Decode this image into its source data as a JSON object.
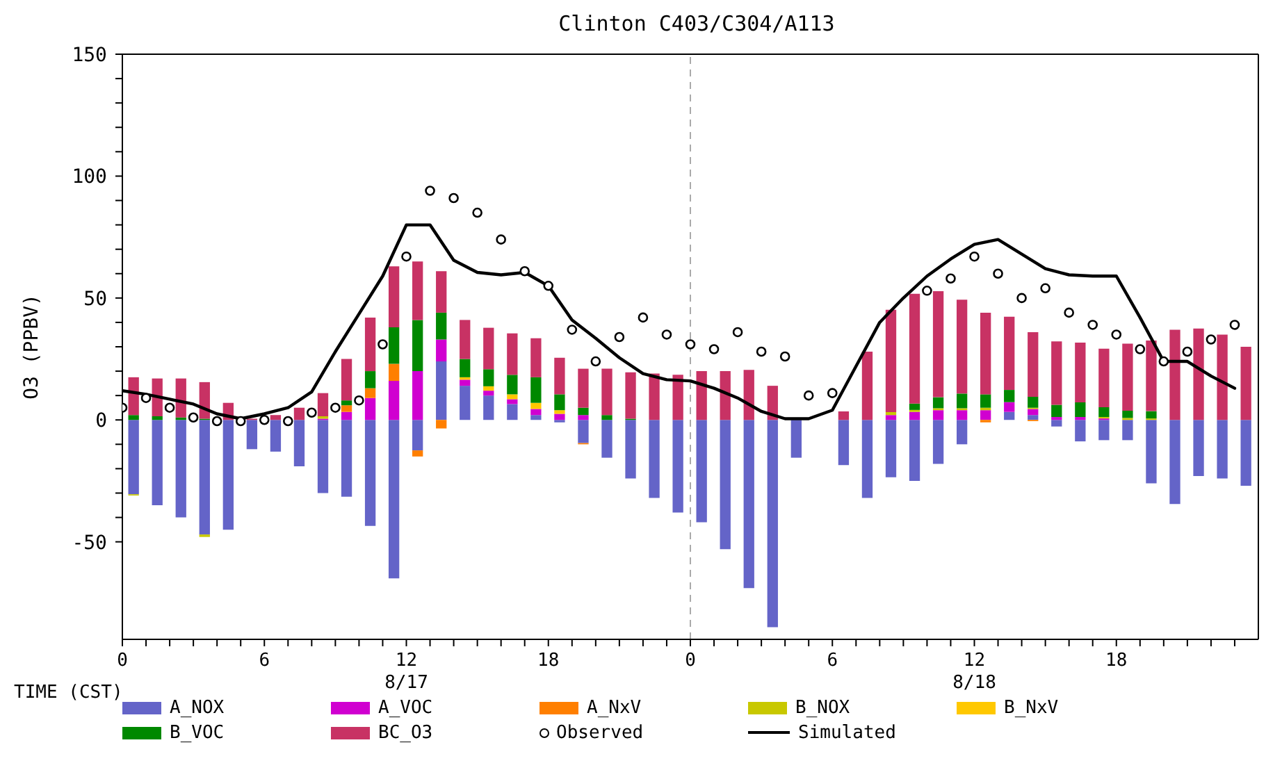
{
  "chart_data": {
    "type": "bar",
    "title": "Clinton C403/C304/A113",
    "xlabel": "TIME (CST)",
    "ylabel": "O3 (PPBV)",
    "stacked": true,
    "legend": "bottom",
    "x": [
      "--08-17T00:30",
      "--08-17T01:30",
      "--08-17T02:30",
      "--08-17T03:30",
      "--08-17T04:30",
      "--08-17T05:30",
      "--08-17T06:30",
      "--08-17T07:30",
      "--08-17T08:30",
      "--08-17T09:30",
      "--08-17T10:30",
      "--08-17T11:30",
      "--08-17T12:30",
      "--08-17T13:30",
      "--08-17T14:30",
      "--08-17T15:30",
      "--08-17T16:30",
      "--08-17T17:30",
      "--08-17T18:30",
      "--08-17T19:30",
      "--08-17T20:30",
      "--08-17T21:30",
      "--08-17T22:30",
      "--08-17T23:30",
      "--08-18T00:30",
      "--08-18T01:30",
      "--08-18T02:30",
      "--08-18T03:30",
      "--08-18T04:30",
      "--08-18T05:30",
      "--08-18T06:30",
      "--08-18T07:30",
      "--08-18T08:30",
      "--08-18T09:30",
      "--08-18T10:30",
      "--08-18T11:30",
      "--08-18T12:30",
      "--08-18T13:30",
      "--08-18T14:30",
      "--08-18T15:30",
      "--08-18T16:30",
      "--08-18T17:30",
      "--08-18T18:30",
      "--08-18T19:30",
      "--08-18T20:30",
      "--08-18T21:30",
      "--08-18T22:30",
      "--08-18T23:30"
    ],
    "xlim": [
      "--08-17T00:00",
      "--08-19T00:00"
    ],
    "xticks": [
      {
        "value": "--08-17T00:00",
        "label": "0"
      },
      {
        "value": "--08-17T01:00",
        "label": null
      },
      {
        "value": "--08-17T02:00",
        "label": null
      },
      {
        "value": "--08-17T03:00",
        "label": null
      },
      {
        "value": "--08-17T04:00",
        "label": null
      },
      {
        "value": "--08-17T05:00",
        "label": null
      },
      {
        "value": "--08-17T06:00",
        "label": "6"
      },
      {
        "value": "--08-17T07:00",
        "label": null
      },
      {
        "value": "--08-17T08:00",
        "label": null
      },
      {
        "value": "--08-17T09:00",
        "label": null
      },
      {
        "value": "--08-17T10:00",
        "label": null
      },
      {
        "value": "--08-17T11:00",
        "label": null
      },
      {
        "value": "--08-17T12:00",
        "label": "12\n8/17"
      },
      {
        "value": "--08-17T13:00",
        "label": null
      },
      {
        "value": "--08-17T14:00",
        "label": null
      },
      {
        "value": "--08-17T15:00",
        "label": null
      },
      {
        "value": "--08-17T16:00",
        "label": null
      },
      {
        "value": "--08-17T17:00",
        "label": null
      },
      {
        "value": "--08-17T18:00",
        "label": "18"
      },
      {
        "value": "--08-17T19:00",
        "label": null
      },
      {
        "value": "--08-17T20:00",
        "label": null
      },
      {
        "value": "--08-17T21:00",
        "label": null
      },
      {
        "value": "--08-17T22:00",
        "label": null
      },
      {
        "value": "--08-17T23:00",
        "label": null
      },
      {
        "value": "--08-18T00:00",
        "label": "0"
      },
      {
        "value": "--08-18T01:00",
        "label": null
      },
      {
        "value": "--08-18T02:00",
        "label": null
      },
      {
        "value": "--08-18T03:00",
        "label": null
      },
      {
        "value": "--08-18T04:00",
        "label": null
      },
      {
        "value": "--08-18T05:00",
        "label": null
      },
      {
        "value": "--08-18T06:00",
        "label": "6"
      },
      {
        "value": "--08-18T07:00",
        "label": null
      },
      {
        "value": "--08-18T08:00",
        "label": null
      },
      {
        "value": "--08-18T09:00",
        "label": null
      },
      {
        "value": "--08-18T10:00",
        "label": null
      },
      {
        "value": "--08-18T11:00",
        "label": null
      },
      {
        "value": "--08-18T12:00",
        "label": "12\n8/18"
      },
      {
        "value": "--08-18T13:00",
        "label": null
      },
      {
        "value": "--08-18T14:00",
        "label": null
      },
      {
        "value": "--08-18T15:00",
        "label": null
      },
      {
        "value": "--08-18T16:00",
        "label": null
      },
      {
        "value": "--08-18T17:00",
        "label": null
      },
      {
        "value": "--08-18T18:00",
        "label": "18"
      },
      {
        "value": "--08-18T19:00",
        "label": null
      },
      {
        "value": "--08-18T20:00",
        "label": null
      },
      {
        "value": "--08-18T21:00",
        "label": null
      },
      {
        "value": "--08-18T22:00",
        "label": null
      },
      {
        "value": "--08-18T23:00",
        "label": null
      }
    ],
    "ylim": [
      -90,
      150
    ],
    "yticks": [
      -50,
      {
        "value": -40,
        "label": null
      },
      {
        "value": -30,
        "label": null
      },
      {
        "value": -20,
        "label": null
      },
      {
        "value": -10,
        "label": null
      },
      0,
      {
        "value": 10,
        "label": null
      },
      {
        "value": 20,
        "label": null
      },
      {
        "value": 30,
        "label": null
      },
      {
        "value": 40,
        "label": null
      },
      50,
      {
        "value": 60,
        "label": null
      },
      {
        "value": 70,
        "label": null
      },
      {
        "value": 80,
        "label": null
      },
      {
        "value": 90,
        "label": null
      },
      100,
      {
        "value": 110,
        "label": null
      },
      {
        "value": 120,
        "label": null
      },
      {
        "value": 130,
        "label": null
      },
      {
        "value": 140,
        "label": null
      },
      150
    ],
    "ref_lines": [
      {
        "axis": "x",
        "value": "--08-18T00:00",
        "color": "#aaaaaa",
        "line_style": "dashed"
      }
    ],
    "series": [
      {
        "name": "A_NOX",
        "color": "#6464c8",
        "values": [
          -30.5,
          -35,
          -40,
          -47,
          -45,
          -12,
          -13,
          -19,
          -30,
          -31.5,
          -43.5,
          -65,
          -12.5,
          24,
          14,
          10,
          6.5,
          2,
          -1,
          -9.5,
          -15.5,
          -24,
          -32,
          -38,
          -42,
          -53,
          -69,
          -85,
          -15.5,
          0,
          -18.5,
          -32,
          -23.5,
          -25,
          -18,
          -10,
          0,
          3.3,
          2,
          -2.7,
          -8.8,
          -8.3,
          -8.3,
          -26,
          -34.5,
          -23,
          -24,
          -27
        ]
      },
      {
        "name": "A_VOC",
        "color": "#d000d0",
        "values": [
          0,
          0,
          0,
          0,
          0,
          0,
          0,
          0,
          0.5,
          3.3,
          9,
          16,
          20,
          9,
          2.5,
          2,
          2,
          2.5,
          2.5,
          2,
          0,
          0,
          0,
          0,
          0,
          0,
          0,
          0,
          0,
          0,
          0,
          0,
          2,
          3.3,
          4,
          4,
          4,
          4,
          2.5,
          1.2,
          1.2,
          0.6,
          0,
          0,
          0,
          0,
          0,
          0
        ]
      },
      {
        "name": "A_NxV",
        "color": "#ff7f00",
        "values": [
          0,
          0,
          0,
          0,
          0,
          0,
          0,
          0,
          0,
          2.7,
          4,
          7,
          -2.5,
          -3.5,
          0,
          0,
          0,
          0,
          0,
          -0.5,
          0,
          0,
          0,
          0,
          0,
          0,
          0,
          0,
          0,
          0,
          0,
          0,
          0,
          0,
          0,
          0,
          -1,
          0,
          -0.5,
          0,
          0,
          0,
          0,
          0,
          0,
          0,
          0,
          0
        ]
      },
      {
        "name": "B_NOX",
        "color": "#c8c800",
        "values": [
          -0.5,
          0,
          0,
          -1,
          0,
          0,
          0,
          0,
          1,
          0,
          0,
          0,
          0,
          0,
          0,
          0,
          0,
          0,
          0,
          0,
          0,
          0,
          0,
          0,
          0,
          0,
          0,
          0,
          0,
          0,
          0,
          0,
          1.2,
          0.8,
          0.8,
          0.8,
          1,
          0,
          0.5,
          0,
          0,
          0.6,
          0.8,
          0.6,
          0,
          0,
          0,
          0
        ]
      },
      {
        "name": "B_NxV",
        "color": "#ffc800",
        "values": [
          0,
          0,
          0,
          0,
          0,
          0,
          0,
          0,
          0,
          0,
          0,
          0,
          0,
          0,
          1,
          1.8,
          2,
          2.5,
          1.5,
          0,
          0,
          0,
          0,
          0,
          0,
          0,
          0,
          0,
          0,
          0,
          0,
          0,
          0,
          0,
          0,
          0,
          0,
          0,
          0,
          0,
          0,
          0,
          0,
          0,
          0,
          0,
          0,
          0
        ]
      },
      {
        "name": "B_VOC",
        "color": "#008800",
        "values": [
          2,
          1.5,
          1,
          0.5,
          0,
          0,
          0,
          0,
          0,
          2,
          7,
          15,
          21,
          11,
          7.5,
          7,
          8,
          10.5,
          6.5,
          3,
          2,
          0.5,
          0,
          0,
          0,
          0,
          0,
          0,
          0,
          0,
          0,
          0,
          0,
          2.6,
          4.5,
          6,
          5.5,
          5,
          4.5,
          5,
          6,
          4,
          3,
          3,
          0,
          0,
          0,
          0
        ]
      },
      {
        "name": "BC_O3",
        "color": "#c83264",
        "values": [
          15.5,
          15.5,
          16,
          15,
          7,
          0.5,
          2,
          5,
          9.5,
          17,
          22,
          25,
          24,
          17,
          16,
          17,
          17,
          16,
          15,
          16,
          19,
          19,
          19,
          18.5,
          20,
          20,
          20.5,
          14,
          0,
          0,
          3.5,
          28,
          42,
          45,
          43.5,
          38.5,
          33.5,
          30,
          26.5,
          26,
          24.5,
          24,
          27.5,
          29,
          37,
          37.5,
          35,
          30
        ]
      },
      {
        "name": "Observed",
        "type": "scatter",
        "color": "#000000",
        "marker": "circle",
        "x": [
          "--08-17T00:00",
          "--08-17T01:00",
          "--08-17T02:00",
          "--08-17T03:00",
          "--08-17T04:00",
          "--08-17T05:00",
          "--08-17T06:00",
          "--08-17T07:00",
          "--08-17T08:00",
          "--08-17T09:00",
          "--08-17T10:00",
          "--08-17T11:00",
          "--08-17T12:00",
          "--08-17T13:00",
          "--08-17T14:00",
          "--08-17T15:00",
          "--08-17T16:00",
          "--08-17T17:00",
          "--08-17T18:00",
          "--08-17T19:00",
          "--08-17T20:00",
          "--08-17T21:00",
          "--08-17T22:00",
          "--08-17T23:00",
          "--08-18T00:00",
          "--08-18T01:00",
          "--08-18T02:00",
          "--08-18T03:00",
          "--08-18T04:00",
          "--08-18T05:00",
          "--08-18T06:00",
          "--08-18T07:00",
          "--08-18T08:00",
          "--08-18T09:00",
          "--08-18T10:00",
          "--08-18T11:00",
          "--08-18T12:00",
          "--08-18T13:00",
          "--08-18T14:00",
          "--08-18T15:00",
          "--08-18T16:00",
          "--08-18T17:00",
          "--08-18T18:00",
          "--08-18T19:00",
          "--08-18T20:00",
          "--08-18T21:00",
          "--08-18T22:00",
          "--08-18T23:00"
        ],
        "values": [
          5,
          9,
          5,
          1,
          -0.5,
          -0.5,
          0,
          -0.5,
          3,
          5,
          8,
          31,
          67,
          94,
          91,
          85,
          74,
          61,
          55,
          37,
          24,
          34,
          42,
          35,
          31,
          29,
          36,
          28,
          26,
          10,
          11,
          null,
          null,
          null,
          53,
          58,
          67,
          60,
          50,
          54,
          44,
          39,
          35,
          29,
          24,
          28,
          33,
          39
        ]
      },
      {
        "name": "Simulated",
        "type": "line",
        "color": "#000000",
        "line_style": "solid",
        "x": [
          "--08-17T00:00",
          "--08-17T01:00",
          "--08-17T02:00",
          "--08-17T03:00",
          "--08-17T04:00",
          "--08-17T05:00",
          "--08-17T06:00",
          "--08-17T07:00",
          "--08-17T08:00",
          "--08-17T09:00",
          "--08-17T10:00",
          "--08-17T11:00",
          "--08-17T12:00",
          "--08-17T13:00",
          "--08-17T14:00",
          "--08-17T15:00",
          "--08-17T16:00",
          "--08-17T17:00",
          "--08-17T18:00",
          "--08-17T19:00",
          "--08-17T20:00",
          "--08-17T21:00",
          "--08-17T22:00",
          "--08-17T23:00",
          "--08-18T00:00",
          "--08-18T01:00",
          "--08-18T02:00",
          "--08-18T03:00",
          "--08-18T04:00",
          "--08-18T05:00",
          "--08-18T06:00",
          "--08-18T07:00",
          "--08-18T08:00",
          "--08-18T09:00",
          "--08-18T10:00",
          "--08-18T11:00",
          "--08-18T12:00",
          "--08-18T13:00",
          "--08-18T14:00",
          "--08-18T15:00",
          "--08-18T16:00",
          "--08-18T17:00",
          "--08-18T18:00",
          "--08-18T19:00",
          "--08-18T20:00",
          "--08-18T21:00",
          "--08-18T22:00",
          "--08-18T23:00"
        ],
        "values": [
          12,
          10.5,
          8.5,
          6.5,
          2.5,
          0.5,
          2.5,
          5,
          11.5,
          28,
          43.5,
          59,
          80,
          80,
          65.5,
          60.5,
          59.5,
          60.5,
          55,
          41,
          33.5,
          25.5,
          19,
          16.5,
          16,
          13,
          9,
          3.5,
          0.5,
          0.5,
          4,
          22,
          40,
          50,
          59,
          66,
          72,
          74,
          68,
          62,
          59.5,
          59,
          59,
          42,
          24,
          24,
          18,
          13
        ]
      }
    ]
  }
}
